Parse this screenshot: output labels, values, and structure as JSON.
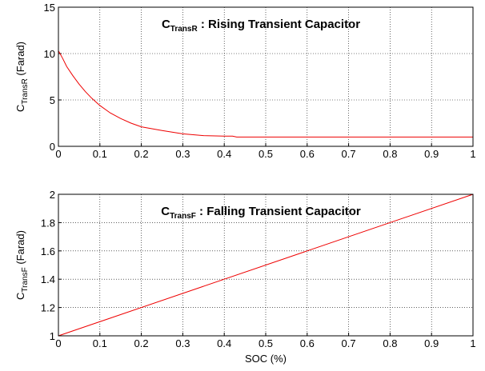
{
  "chart_data": [
    {
      "type": "line",
      "title": "C",
      "title_sub": "TransR",
      "title_rest": " : Rising Transient Capacitor",
      "ylabel": "C",
      "ylabel_sub": "TransR",
      "ylabel_rest": " (Farad)",
      "x": [
        0,
        0.01,
        0.02,
        0.035,
        0.05,
        0.065,
        0.08,
        0.1,
        0.125,
        0.15,
        0.175,
        0.2,
        0.25,
        0.3,
        0.35,
        0.4,
        0.42,
        0.43,
        1
      ],
      "values": [
        10.3,
        9.5,
        8.6,
        7.6,
        6.7,
        5.9,
        5.2,
        4.4,
        3.6,
        3.0,
        2.5,
        2.1,
        1.7,
        1.35,
        1.15,
        1.1,
        1.1,
        1.0,
        1.0
      ],
      "color": "#ee0000",
      "xlim": [
        0,
        1
      ],
      "xticks": [
        0,
        0.1,
        0.2,
        0.3,
        0.4,
        0.5,
        0.6,
        0.7,
        0.8,
        0.9,
        1
      ],
      "ylim": [
        0,
        15
      ],
      "yticks": [
        0,
        5,
        10,
        15
      ],
      "grid": true
    },
    {
      "type": "line",
      "title": "C",
      "title_sub": "TransF",
      "title_rest": " : Falling Transient Capacitor",
      "ylabel": "C",
      "ylabel_sub": "TransF",
      "ylabel_rest": " (Farad)",
      "xlabel": "SOC (%)",
      "x": [
        0,
        1
      ],
      "values": [
        1,
        2
      ],
      "color": "#ee0000",
      "xlim": [
        0,
        1
      ],
      "xticks": [
        0,
        0.1,
        0.2,
        0.3,
        0.4,
        0.5,
        0.6,
        0.7,
        0.8,
        0.9,
        1
      ],
      "ylim": [
        1,
        2
      ],
      "yticks": [
        1,
        1.2,
        1.4,
        1.6,
        1.8,
        2
      ],
      "grid": true
    }
  ]
}
